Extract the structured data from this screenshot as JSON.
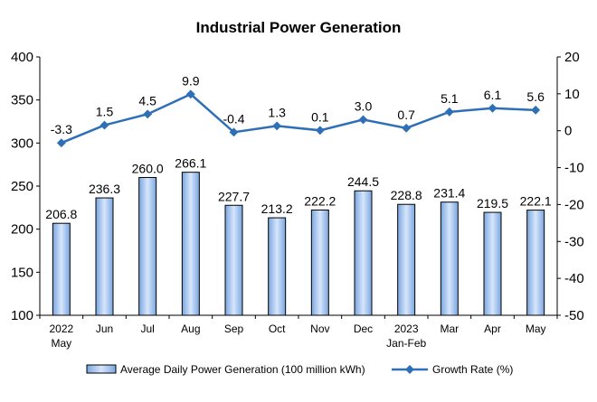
{
  "chart_data": {
    "type": "bar+line",
    "title": "Industrial Power Generation",
    "categories": [
      {
        "line1": "2022",
        "line2": "May"
      },
      {
        "line1": "Jun",
        "line2": ""
      },
      {
        "line1": "Jul",
        "line2": ""
      },
      {
        "line1": "Aug",
        "line2": ""
      },
      {
        "line1": "Sep",
        "line2": ""
      },
      {
        "line1": "Oct",
        "line2": ""
      },
      {
        "line1": "Nov",
        "line2": ""
      },
      {
        "line1": "Dec",
        "line2": ""
      },
      {
        "line1": "2023",
        "line2": "Jan-Feb"
      },
      {
        "line1": "Mar",
        "line2": ""
      },
      {
        "line1": "Apr",
        "line2": ""
      },
      {
        "line1": "May",
        "line2": ""
      }
    ],
    "series": [
      {
        "name": "Average Daily Power Generation (100 million kWh)",
        "type": "bar",
        "axis": "left",
        "values": [
          206.8,
          236.3,
          260.0,
          266.1,
          227.7,
          213.2,
          222.2,
          244.5,
          228.8,
          231.4,
          219.5,
          222.1
        ],
        "labels": [
          "206.8",
          "236.3",
          "260.0",
          "266.1",
          "227.7",
          "213.2",
          "222.2",
          "244.5",
          "228.8",
          "231.4",
          "219.5",
          "222.1"
        ]
      },
      {
        "name": "Growth Rate (%)",
        "type": "line",
        "axis": "right",
        "values": [
          -3.3,
          1.5,
          4.5,
          9.9,
          -0.4,
          1.3,
          0.1,
          3.0,
          0.7,
          5.1,
          6.1,
          5.6
        ],
        "labels": [
          "-3.3",
          "1.5",
          "4.5",
          "9.9",
          "-0.4",
          "1.3",
          "0.1",
          "3.0",
          "0.7",
          "5.1",
          "6.1",
          "5.6"
        ]
      }
    ],
    "y_left": {
      "min": 100,
      "max": 400,
      "ticks": [
        100,
        150,
        200,
        250,
        300,
        350,
        400
      ]
    },
    "y_right": {
      "min": -50,
      "max": 20,
      "ticks": [
        -50,
        -40,
        -30,
        -20,
        -10,
        0,
        10,
        20
      ]
    },
    "grid": false,
    "legend_position": "bottom",
    "colors": {
      "bar_fill_light": "#d7e6fb",
      "bar_fill_dark": "#7aa6e0",
      "bar_stroke": "#000000",
      "line": "#2e6fb7",
      "axis": "#000000"
    }
  }
}
